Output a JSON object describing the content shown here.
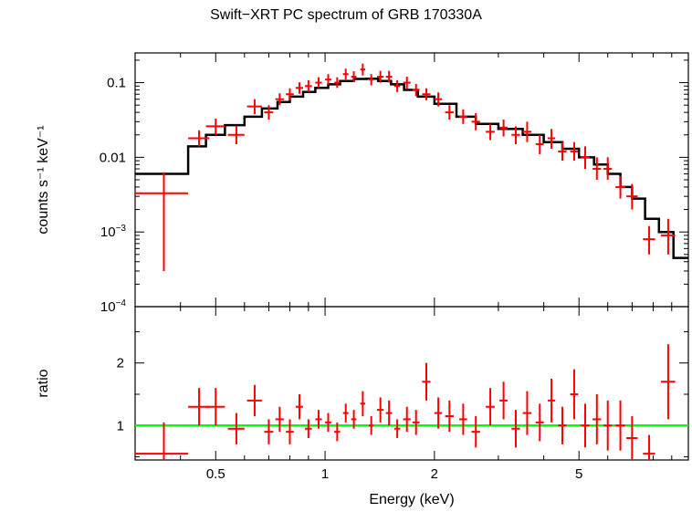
{
  "chart_data": [
    {
      "type": "scatter",
      "panel": "spectrum",
      "title": "Swift−XRT PC spectrum of GRB 170330A",
      "xlabel": "Energy (keV)",
      "ylabel": "counts s⁻¹ keV⁻¹",
      "xscale": "log",
      "yscale": "log",
      "xlim": [
        0.3,
        10
      ],
      "ylim": [
        0.0001,
        0.25
      ],
      "yticks": [
        {
          "value": 0.1,
          "label": "0.1",
          "sup": ""
        },
        {
          "value": 0.01,
          "label": "0.01",
          "sup": ""
        },
        {
          "value": 0.001,
          "label": "10",
          "sup": "−3"
        },
        {
          "value": 0.0001,
          "label": "10",
          "sup": "−4"
        }
      ],
      "colors": {
        "data": "#ff0000",
        "model": "#000000"
      },
      "series": [
        {
          "kind": "data",
          "x": [
            0.36,
            0.45,
            0.5,
            0.57,
            0.64,
            0.7,
            0.75,
            0.8,
            0.85,
            0.9,
            0.96,
            1.02,
            1.08,
            1.14,
            1.2,
            1.27,
            1.34,
            1.42,
            1.5,
            1.58,
            1.68,
            1.78,
            1.9,
            2.05,
            2.2,
            2.4,
            2.6,
            2.85,
            3.1,
            3.35,
            3.6,
            3.9,
            4.2,
            4.5,
            4.85,
            5.2,
            5.6,
            6.0,
            6.5,
            7.0,
            7.8,
            8.8
          ],
          "xerr": [
            0.06,
            0.03,
            0.03,
            0.03,
            0.03,
            0.02,
            0.02,
            0.02,
            0.02,
            0.02,
            0.02,
            0.02,
            0.02,
            0.02,
            0.02,
            0.02,
            0.02,
            0.03,
            0.03,
            0.03,
            0.04,
            0.04,
            0.05,
            0.05,
            0.06,
            0.06,
            0.07,
            0.08,
            0.08,
            0.09,
            0.1,
            0.1,
            0.1,
            0.12,
            0.12,
            0.14,
            0.15,
            0.16,
            0.2,
            0.25,
            0.3,
            0.4
          ],
          "y": [
            0.0033,
            0.018,
            0.026,
            0.02,
            0.048,
            0.04,
            0.06,
            0.07,
            0.085,
            0.09,
            0.1,
            0.11,
            0.1,
            0.13,
            0.12,
            0.15,
            0.11,
            0.12,
            0.12,
            0.09,
            0.1,
            0.08,
            0.07,
            0.06,
            0.04,
            0.035,
            0.03,
            0.022,
            0.025,
            0.02,
            0.022,
            0.015,
            0.018,
            0.012,
            0.012,
            0.01,
            0.007,
            0.007,
            0.004,
            0.003,
            0.0008,
            0.0009
          ],
          "yerr_lo": [
            0.003,
            0.004,
            0.006,
            0.005,
            0.01,
            0.008,
            0.01,
            0.012,
            0.014,
            0.015,
            0.015,
            0.016,
            0.015,
            0.02,
            0.018,
            0.025,
            0.018,
            0.02,
            0.02,
            0.015,
            0.017,
            0.014,
            0.012,
            0.012,
            0.008,
            0.007,
            0.007,
            0.005,
            0.006,
            0.005,
            0.006,
            0.004,
            0.005,
            0.003,
            0.003,
            0.003,
            0.002,
            0.002,
            0.0012,
            0.001,
            0.0003,
            0.0004
          ],
          "yerr_hi": [
            0.003,
            0.005,
            0.007,
            0.006,
            0.012,
            0.01,
            0.012,
            0.014,
            0.016,
            0.018,
            0.018,
            0.02,
            0.018,
            0.024,
            0.022,
            0.03,
            0.02,
            0.024,
            0.024,
            0.018,
            0.02,
            0.016,
            0.014,
            0.014,
            0.01,
            0.009,
            0.009,
            0.006,
            0.007,
            0.006,
            0.008,
            0.005,
            0.006,
            0.004,
            0.004,
            0.004,
            0.003,
            0.003,
            0.0016,
            0.0014,
            0.0004,
            0.0006
          ]
        },
        {
          "kind": "model",
          "x": [
            0.3,
            0.42,
            0.47,
            0.53,
            0.6,
            0.67,
            0.74,
            0.8,
            0.87,
            0.94,
            1.02,
            1.1,
            1.2,
            1.3,
            1.4,
            1.52,
            1.65,
            1.8,
            2.0,
            2.3,
            2.6,
            3.0,
            3.5,
            4.0,
            4.5,
            5.0,
            5.5,
            6.0,
            6.5,
            7.0,
            7.6,
            8.3,
            9.1,
            10.0
          ],
          "y": [
            0.006,
            0.014,
            0.02,
            0.027,
            0.035,
            0.045,
            0.055,
            0.065,
            0.075,
            0.085,
            0.095,
            0.105,
            0.112,
            0.113,
            0.105,
            0.095,
            0.08,
            0.065,
            0.052,
            0.035,
            0.028,
            0.024,
            0.02,
            0.016,
            0.013,
            0.01,
            0.008,
            0.006,
            0.004,
            0.0028,
            0.0015,
            0.001,
            0.00045,
            0.00025
          ]
        }
      ]
    },
    {
      "type": "scatter",
      "panel": "ratio",
      "xlabel": "Energy (keV)",
      "ylabel": "ratio",
      "xscale": "log",
      "xlim": [
        0.3,
        10
      ],
      "ylim": [
        0.45,
        2.9
      ],
      "yticks": [
        1,
        2
      ],
      "xticks": [
        {
          "value": 0.5,
          "label": "0.5"
        },
        {
          "value": 1,
          "label": "1"
        },
        {
          "value": 2,
          "label": "2"
        },
        {
          "value": 5,
          "label": "5"
        }
      ],
      "reference_line": {
        "value": 1,
        "color": "#00ff00"
      },
      "colors": {
        "data": "#ff0000"
      },
      "series": [
        {
          "kind": "data",
          "x": [
            0.36,
            0.45,
            0.5,
            0.57,
            0.64,
            0.7,
            0.75,
            0.8,
            0.85,
            0.9,
            0.96,
            1.02,
            1.08,
            1.14,
            1.2,
            1.27,
            1.34,
            1.42,
            1.5,
            1.58,
            1.68,
            1.78,
            1.9,
            2.05,
            2.2,
            2.4,
            2.6,
            2.85,
            3.1,
            3.35,
            3.6,
            3.9,
            4.2,
            4.5,
            4.85,
            5.2,
            5.6,
            6.0,
            6.5,
            7.0,
            7.8,
            8.8
          ],
          "xerr": [
            0.06,
            0.03,
            0.03,
            0.03,
            0.03,
            0.02,
            0.02,
            0.02,
            0.02,
            0.02,
            0.02,
            0.02,
            0.02,
            0.02,
            0.02,
            0.02,
            0.02,
            0.03,
            0.03,
            0.03,
            0.04,
            0.04,
            0.05,
            0.05,
            0.06,
            0.06,
            0.07,
            0.08,
            0.08,
            0.09,
            0.1,
            0.1,
            0.1,
            0.12,
            0.12,
            0.14,
            0.15,
            0.16,
            0.2,
            0.25,
            0.3,
            0.4
          ],
          "y": [
            0.55,
            1.3,
            1.3,
            0.95,
            1.4,
            0.9,
            1.1,
            0.9,
            1.3,
            0.95,
            1.1,
            1.05,
            0.9,
            1.2,
            1.1,
            1.35,
            1.0,
            1.25,
            1.2,
            0.95,
            1.1,
            1.05,
            1.7,
            1.2,
            1.15,
            1.1,
            0.9,
            1.3,
            1.4,
            0.95,
            1.2,
            1.05,
            1.4,
            1.0,
            1.5,
            1.0,
            1.1,
            1.0,
            1.0,
            0.8,
            0.55,
            1.7
          ],
          "yerr_lo": [
            0.5,
            0.3,
            0.3,
            0.25,
            0.25,
            0.2,
            0.2,
            0.2,
            0.2,
            0.15,
            0.15,
            0.15,
            0.15,
            0.15,
            0.15,
            0.2,
            0.15,
            0.2,
            0.2,
            0.15,
            0.2,
            0.2,
            0.3,
            0.25,
            0.25,
            0.25,
            0.25,
            0.3,
            0.3,
            0.3,
            0.35,
            0.3,
            0.35,
            0.3,
            0.4,
            0.35,
            0.4,
            0.4,
            0.4,
            0.35,
            0.3,
            0.6
          ],
          "yerr_hi": [
            0.5,
            0.3,
            0.3,
            0.25,
            0.25,
            0.2,
            0.2,
            0.2,
            0.2,
            0.15,
            0.15,
            0.15,
            0.15,
            0.15,
            0.15,
            0.2,
            0.15,
            0.2,
            0.2,
            0.15,
            0.2,
            0.2,
            0.3,
            0.25,
            0.25,
            0.25,
            0.25,
            0.3,
            0.3,
            0.3,
            0.35,
            0.3,
            0.35,
            0.3,
            0.4,
            0.35,
            0.4,
            0.4,
            0.4,
            0.35,
            0.3,
            0.6
          ]
        }
      ]
    }
  ]
}
